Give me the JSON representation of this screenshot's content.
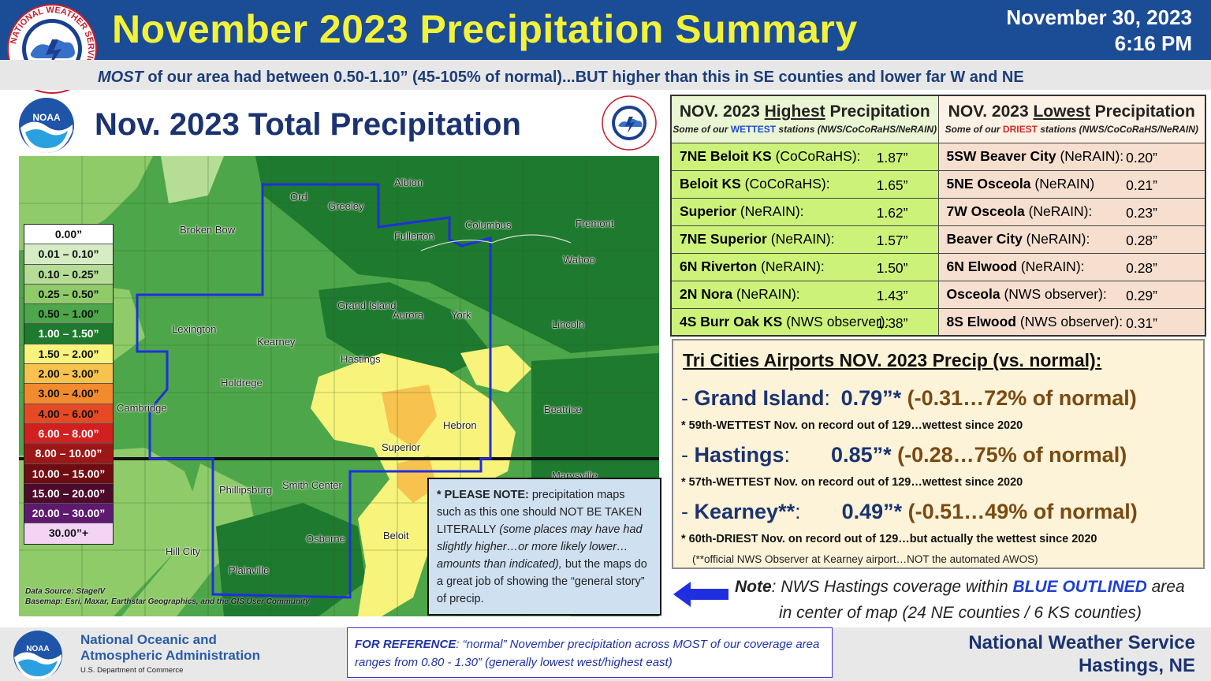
{
  "header": {
    "title": "November 2023 Precipitation Summary",
    "date": "November 30, 2023",
    "time": "6:16 PM",
    "subtitle_most": "MOST",
    "subtitle_rest": " of our area had between 0.50-1.10” (45-105% of normal)...BUT higher than this in SE counties and lower far W and NE"
  },
  "logos": {
    "nws_ring_text": "NATIONAL WEATHER SERVICE",
    "noaa_text": "NOAA"
  },
  "map": {
    "title": "Nov. 2023 Total Precipitation",
    "data_source_line1": "Data Source: StageIV",
    "data_source_line2": "Basemap: Esri, Maxar, Earthstar Geographics, and the GIS User Community",
    "places": [
      {
        "name": "Albion"
      },
      {
        "name": "Ord"
      },
      {
        "name": "Greeley"
      },
      {
        "name": "Broken Bow"
      },
      {
        "name": "Columbus"
      },
      {
        "name": "Fremont"
      },
      {
        "name": "Fullerton"
      },
      {
        "name": "Wahoo"
      },
      {
        "name": "Grand Island"
      },
      {
        "name": "Aurora"
      },
      {
        "name": "York"
      },
      {
        "name": "Lexington"
      },
      {
        "name": "Kearney"
      },
      {
        "name": "Lincoln"
      },
      {
        "name": "Hastings"
      },
      {
        "name": "Holdrege"
      },
      {
        "name": "Cambridge"
      },
      {
        "name": "Beatrice"
      },
      {
        "name": "Hebron"
      },
      {
        "name": "Superior"
      },
      {
        "name": "Marysville"
      },
      {
        "name": "Phillipsburg"
      },
      {
        "name": "Smith Center"
      },
      {
        "name": "Osborne"
      },
      {
        "name": "Beloit"
      },
      {
        "name": "Hill City"
      },
      {
        "name": "Plainville"
      }
    ]
  },
  "legend": [
    {
      "label": "0.00”",
      "color": "#ffffff",
      "text": "#111111"
    },
    {
      "label": "0.01 – 0.10”",
      "color": "#d6ecc4",
      "text": "#111111"
    },
    {
      "label": "0.10 – 0.25”",
      "color": "#b5dd96",
      "text": "#111111"
    },
    {
      "label": "0.25 – 0.50”",
      "color": "#8fcb69",
      "text": "#111111"
    },
    {
      "label": "0.50 – 1.00”",
      "color": "#4ea64a",
      "text": "#111111"
    },
    {
      "label": "1.00 – 1.50”",
      "color": "#1e7a2e",
      "text": "#ffffff"
    },
    {
      "label": "1.50 – 2.00”",
      "color": "#f8f37a",
      "text": "#111111"
    },
    {
      "label": "2.00 – 3.00”",
      "color": "#f7c34e",
      "text": "#111111"
    },
    {
      "label": "3.00 – 4.00”",
      "color": "#f28a2e",
      "text": "#111111"
    },
    {
      "label": "4.00 – 6.00”",
      "color": "#e64a25",
      "text": "#111111"
    },
    {
      "label": "6.00 – 8.00”",
      "color": "#d22020",
      "text": "#ffffff"
    },
    {
      "label": "8.00 – 10.00”",
      "color": "#9e1717",
      "text": "#ffffff"
    },
    {
      "label": "10.00 – 15.00”",
      "color": "#6e0c12",
      "text": "#ffffff"
    },
    {
      "label": "15.00 – 20.00”",
      "color": "#4d0a2a",
      "text": "#ffffff"
    },
    {
      "label": "20.00 – 30.00”",
      "color": "#5e1a6e",
      "text": "#ffffff"
    },
    {
      "label": "30.00”+",
      "color": "#f4d4f4",
      "text": "#111111"
    }
  ],
  "note": {
    "bold": "* PLEASE NOTE:",
    "text1": " precipitation maps such as this one should NOT BE TAKEN LITERALLY ",
    "italic": "(some places may have had slightly higher…or more likely lower… amounts than indicated),",
    "text2": " but the maps do a great job of showing the “general story” of precip."
  },
  "table": {
    "high_title_pre": "NOV. 2023 ",
    "high_title_u": "Highest",
    "high_title_post": " Precipitation",
    "high_sub_pre": "Some of our ",
    "high_sub_key": "WETTEST",
    "high_sub_post": " stations (NWS/CoCoRaHS/NeRAIN)",
    "low_title_pre": "NOV. 2023 ",
    "low_title_u": "Lowest",
    "low_title_post": " Precipitation",
    "low_sub_pre": "Some of our ",
    "low_sub_key": "DRIEST",
    "low_sub_post": " stations (NWS/CoCoRaHS/NeRAIN)",
    "rows": [
      {
        "hi_name": "7NE Beloit KS",
        "hi_src": " (CoCoRaHS):",
        "hi_val": "1.87”",
        "lo_name": "5SW Beaver City",
        "lo_src": " (NeRAIN):",
        "lo_val": "0.20”"
      },
      {
        "hi_name": "Beloit KS",
        "hi_src": " (CoCoRaHS):",
        "hi_val": "1.65”",
        "lo_name": "5NE Osceola",
        "lo_src": " (NeRAIN)",
        "lo_val": "0.21”"
      },
      {
        "hi_name": "Superior",
        "hi_src": " (NeRAIN):",
        "hi_val": "1.62”",
        "lo_name": "7W Osceola",
        "lo_src": " (NeRAIN):",
        "lo_val": "0.23”"
      },
      {
        "hi_name": "7NE Superior",
        "hi_src": " (NeRAIN):",
        "hi_val": "1.57”",
        "lo_name": "Beaver City",
        "lo_src": " (NeRAIN):",
        "lo_val": "0.28”"
      },
      {
        "hi_name": "6N Riverton",
        "hi_src": " (NeRAIN):",
        "hi_val": "1.50”",
        "lo_name": "6N Elwood",
        "lo_src": " (NeRAIN):",
        "lo_val": "0.28”"
      },
      {
        "hi_name": "2N Nora",
        "hi_src": " (NeRAIN):",
        "hi_val": "1.43”",
        "lo_name": "Osceola",
        "lo_src": "  (NWS observer):",
        "lo_val": "0.29”"
      },
      {
        "hi_name": "4S Burr Oak KS",
        "hi_src": " (NWS observer):",
        "hi_val": "1.38”",
        "lo_name": "8S Elwood",
        "lo_src": "  (NWS observer):",
        "lo_val": "0.31”"
      }
    ]
  },
  "tri": {
    "title": "Tri Cities Airports NOV. 2023 Precip (vs. normal)",
    "title_colon": ":",
    "cities": [
      {
        "dash": "- ",
        "name": "Grand Island",
        "sep": ": ",
        "amt": "0.79”*",
        "dep": "(-0.31…72% of normal)",
        "note": "* 59th-WETTEST Nov. on record out of 129…wettest since 2020"
      },
      {
        "dash": "- ",
        "name": "Hastings",
        "sep": ":",
        "amt": "0.85”*",
        "dep": "(-0.28…75% of normal)",
        "note": "* 57th-WETTEST Nov. on record out of 129…wettest since 2020"
      },
      {
        "dash": "- ",
        "name": "Kearney**",
        "sep": ":",
        "amt": "0.49”*",
        "dep": "(-0.51…49% of normal)",
        "note": "* 60th-DRIEST Nov. on record out of 129…but actually the wettest since 2020"
      }
    ],
    "footnote": "(**official NWS Observer at Kearney airport…NOT the automated AWOS)"
  },
  "coverage": {
    "note_label": "Note",
    "text1": ": NWS Hastings coverage within ",
    "blue": "BLUE OUTLINED",
    "text2": " area",
    "line2": "in center of map (24 NE counties / 6 KS counties)"
  },
  "footer": {
    "noaa_line1": "National Oceanic and",
    "noaa_line2": "Atmospheric Administration",
    "dept": "U.S. Department of Commerce",
    "ref_label": "FOR REFERENCE",
    "ref_text": ": “normal” November precipitation across MOST of our coverage area ranges from 0.80 - 1.30”  (generally lowest west/highest east)",
    "nws_line1": "National Weather Service",
    "nws_line2": "Hastings, NE"
  },
  "colors": {
    "header_blue": "#1b4c96",
    "title_yellow": "#f3f23a",
    "outline_blue": "#1f2fe0",
    "state_line": "#111111"
  }
}
